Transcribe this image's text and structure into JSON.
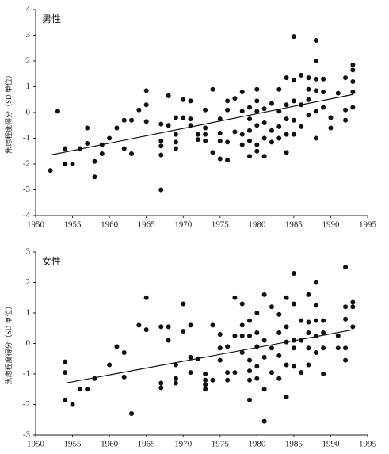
{
  "chart_data": [
    {
      "type": "scatter",
      "title": "男性",
      "ylabel": "焦虑程度得分（SD 单位）",
      "color": "#111111",
      "xlim": [
        1950,
        1995
      ],
      "xticks": [
        1950,
        1955,
        1960,
        1965,
        1970,
        1975,
        1980,
        1985,
        1990,
        1995
      ],
      "ylim": [
        -4,
        4
      ],
      "yticks": [
        -4,
        -3,
        -2,
        -1,
        0,
        1,
        2,
        3,
        4
      ],
      "x": [
        1952,
        1953,
        1954,
        1954,
        1955,
        1956,
        1957,
        1957,
        1958,
        1958,
        1959,
        1959,
        1960,
        1961,
        1962,
        1962,
        1963,
        1963,
        1964,
        1965,
        1965,
        1965,
        1967,
        1967,
        1967,
        1967,
        1967,
        1968,
        1968,
        1969,
        1969,
        1969,
        1969,
        1970,
        1970,
        1971,
        1971,
        1971,
        1972,
        1972,
        1973,
        1973,
        1973,
        1973,
        1974,
        1974,
        1975,
        1975,
        1975,
        1975,
        1976,
        1976,
        1976,
        1976,
        1977,
        1977,
        1978,
        1978,
        1978,
        1978,
        1979,
        1979,
        1979,
        1979,
        1979,
        1980,
        1980,
        1980,
        1980,
        1980,
        1980,
        1981,
        1981,
        1981,
        1981,
        1982,
        1982,
        1982,
        1983,
        1983,
        1983,
        1983,
        1984,
        1984,
        1984,
        1984,
        1984,
        1985,
        1985,
        1985,
        1985,
        1985,
        1986,
        1986,
        1986,
        1987,
        1987,
        1987,
        1987,
        1988,
        1988,
        1988,
        1988,
        1988,
        1988,
        1989,
        1989,
        1989,
        1990,
        1990,
        1991,
        1992,
        1992,
        1992,
        1993,
        1993,
        1993,
        1993,
        1993
      ],
      "values": [
        -2.25,
        0.05,
        -1.4,
        -2.0,
        -2.0,
        -1.4,
        -1.2,
        -0.6,
        -1.9,
        -2.5,
        -1.6,
        -1.25,
        -1.0,
        -0.6,
        -0.3,
        -1.4,
        -0.3,
        -1.6,
        0.1,
        0.85,
        0.3,
        -0.35,
        -0.45,
        -1.1,
        -1.3,
        -1.65,
        -3.0,
        0.65,
        -0.5,
        -0.2,
        -0.85,
        -1.15,
        -1.4,
        0.5,
        -0.2,
        0.45,
        -0.25,
        -0.5,
        -0.85,
        -1.05,
        0.1,
        -0.6,
        -0.85,
        -1.1,
        0.9,
        -1.55,
        -0.25,
        -0.8,
        -1.8,
        -1.1,
        0.45,
        0.1,
        -1.15,
        -1.85,
        0.55,
        -0.75,
        0.8,
        0.05,
        -0.85,
        -1.25,
        0.2,
        -0.25,
        -0.7,
        -1.1,
        -1.7,
        0.9,
        0.45,
        0.05,
        -0.5,
        -1.25,
        -1.5,
        0.15,
        -0.4,
        -1.0,
        -1.7,
        0.35,
        -0.7,
        -1.15,
        0.9,
        0.05,
        -0.55,
        -1.0,
        1.35,
        0.3,
        -0.25,
        -0.85,
        -1.55,
        2.95,
        1.25,
        0.45,
        -0.3,
        -0.85,
        1.45,
        0.3,
        -0.55,
        1.35,
        0.9,
        0.5,
        -0.1,
        2.8,
        2.0,
        1.3,
        0.85,
        0.05,
        -1.0,
        1.3,
        0.8,
        0.2,
        -0.2,
        -0.6,
        0.75,
        1.35,
        0.1,
        -0.3,
        1.85,
        1.65,
        1.2,
        0.8,
        0.2
      ],
      "trend": {
        "x": [
          1952,
          1993
        ],
        "values": [
          -1.65,
          0.7
        ]
      }
    },
    {
      "type": "scatter",
      "title": "女性",
      "ylabel": "焦虑程度得分（SD 单位）",
      "color": "#111111",
      "xlim": [
        1950,
        1995
      ],
      "xticks": [
        1950,
        1955,
        1960,
        1965,
        1970,
        1975,
        1980,
        1985,
        1990,
        1995
      ],
      "ylim": [
        -3,
        3
      ],
      "yticks": [
        -3,
        -2,
        -1,
        0,
        1,
        2,
        3
      ],
      "x": [
        1954,
        1954,
        1954,
        1955,
        1956,
        1957,
        1958,
        1960,
        1961,
        1962,
        1962,
        1963,
        1964,
        1965,
        1965,
        1967,
        1967,
        1967,
        1968,
        1968,
        1969,
        1969,
        1969,
        1970,
        1970,
        1971,
        1971,
        1971,
        1972,
        1973,
        1973,
        1973,
        1973,
        1974,
        1974,
        1975,
        1975,
        1975,
        1976,
        1976,
        1976,
        1977,
        1977,
        1977,
        1978,
        1978,
        1978,
        1978,
        1979,
        1979,
        1979,
        1979,
        1979,
        1979,
        1980,
        1980,
        1980,
        1980,
        1980,
        1981,
        1981,
        1981,
        1981,
        1981,
        1982,
        1982,
        1982,
        1983,
        1983,
        1983,
        1983,
        1984,
        1984,
        1984,
        1984,
        1984,
        1985,
        1985,
        1985,
        1985,
        1985,
        1986,
        1986,
        1986,
        1987,
        1987,
        1987,
        1987,
        1987,
        1988,
        1988,
        1988,
        1988,
        1988,
        1989,
        1989,
        1989,
        1989,
        1991,
        1991,
        1992,
        1992,
        1992,
        1992,
        1992,
        1993,
        1993,
        1993
      ],
      "values": [
        -0.6,
        -0.95,
        -1.85,
        -2.0,
        -1.5,
        -1.5,
        -1.15,
        -0.7,
        -0.1,
        -0.3,
        -1.1,
        -2.3,
        0.6,
        1.5,
        0.45,
        0.55,
        -1.3,
        -1.45,
        0.55,
        0.1,
        -0.7,
        -1.15,
        -1.3,
        1.3,
        0.4,
        0.6,
        -0.45,
        -0.95,
        -0.5,
        -1.0,
        -1.2,
        -1.35,
        -1.5,
        0.6,
        -1.2,
        0.3,
        -0.15,
        -0.55,
        -0.1,
        -0.95,
        -1.2,
        1.5,
        0.25,
        -0.95,
        1.3,
        0.6,
        0.25,
        -0.3,
        0.75,
        0.25,
        -0.55,
        -0.9,
        -1.2,
        -1.85,
        1.0,
        0.35,
        -0.1,
        -0.75,
        -1.15,
        1.6,
        0.1,
        -0.45,
        -1.5,
        -2.55,
        1.2,
        -0.15,
        -0.95,
        0.95,
        0.35,
        -0.4,
        -1.15,
        1.5,
        0.55,
        0.05,
        -0.7,
        -1.75,
        2.3,
        1.3,
        0.1,
        -0.15,
        -0.75,
        0.75,
        0.1,
        -0.95,
        1.6,
        0.7,
        0.35,
        -0.15,
        -0.7,
        2.0,
        1.25,
        0.75,
        0.25,
        -0.3,
        0.75,
        0.35,
        -0.15,
        -1.0,
        0.25,
        -0.15,
        2.5,
        1.2,
        0.8,
        -0.15,
        -0.55,
        1.35,
        1.2,
        0.55
      ],
      "trend": {
        "x": [
          1954,
          1993
        ],
        "values": [
          -1.3,
          0.45
        ]
      }
    }
  ]
}
